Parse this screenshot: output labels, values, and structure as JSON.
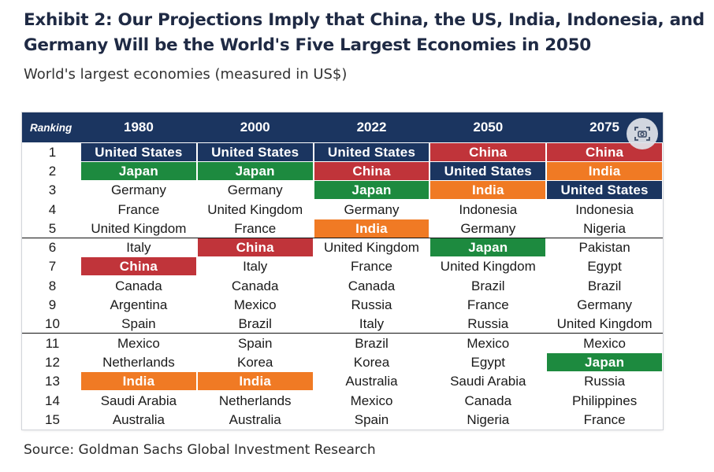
{
  "header": {
    "title": "Exhibit 2: Our Projections Imply that China, the US, India, Indonesia, and Germany Will be the World's Five Largest Economies in 2050",
    "subtitle": "World's largest economies (measured in US$)"
  },
  "source": "Source: Goldman Sachs Global Investment Research",
  "colors": {
    "header_bg": "#1b3560",
    "United States": "#1b3560",
    "Japan": "#1d8a3f",
    "China": "#c0343a",
    "India": "#f07a24"
  },
  "chart_data": {
    "type": "table",
    "title": "World's largest economies (measured in US$)",
    "columns": [
      "Ranking",
      "1980",
      "2000",
      "2022",
      "2050",
      "2075"
    ],
    "rows": [
      [
        "1",
        "United States",
        "United States",
        "United States",
        "China",
        "China"
      ],
      [
        "2",
        "Japan",
        "Japan",
        "China",
        "United States",
        "India"
      ],
      [
        "3",
        "Germany",
        "Germany",
        "Japan",
        "India",
        "United States"
      ],
      [
        "4",
        "France",
        "United Kingdom",
        "Germany",
        "Indonesia",
        "Indonesia"
      ],
      [
        "5",
        "United Kingdom",
        "France",
        "India",
        "Germany",
        "Nigeria"
      ],
      [
        "6",
        "Italy",
        "China",
        "United Kingdom",
        "Japan",
        "Pakistan"
      ],
      [
        "7",
        "China",
        "Italy",
        "France",
        "United Kingdom",
        "Egypt"
      ],
      [
        "8",
        "Canada",
        "Canada",
        "Canada",
        "Brazil",
        "Brazil"
      ],
      [
        "9",
        "Argentina",
        "Mexico",
        "Russia",
        "France",
        "Germany"
      ],
      [
        "10",
        "Spain",
        "Brazil",
        "Italy",
        "Russia",
        "United Kingdom"
      ],
      [
        "11",
        "Mexico",
        "Spain",
        "Brazil",
        "Mexico",
        "Mexico"
      ],
      [
        "12",
        "Netherlands",
        "Korea",
        "Korea",
        "Egypt",
        "Japan"
      ],
      [
        "13",
        "India",
        "India",
        "Australia",
        "Saudi Arabia",
        "Russia"
      ],
      [
        "14",
        "Saudi Arabia",
        "Netherlands",
        "Mexico",
        "Canada",
        "Philippines"
      ],
      [
        "15",
        "Australia",
        "Australia",
        "Spain",
        "Nigeria",
        "France"
      ]
    ],
    "highlighted": [
      "United States",
      "Japan",
      "China",
      "India"
    ],
    "group_breaks_after": [
      5,
      10
    ]
  }
}
